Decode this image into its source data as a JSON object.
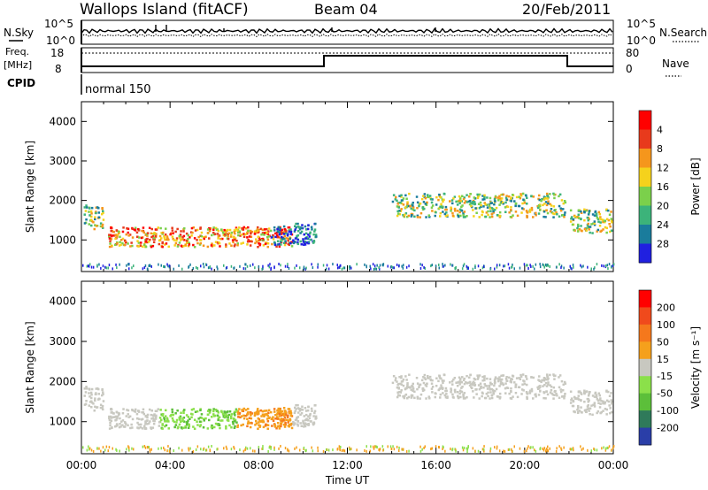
{
  "header": {
    "title": "Wallops Island (fitACF)",
    "beam": "Beam 04",
    "date": "20/Feb/2011"
  },
  "top_panels": {
    "nsky_label": "N.Sky",
    "nsearch_label": "N.Search",
    "noise_ticks": [
      "10^5",
      "10^0"
    ],
    "freq_label": "Freq.",
    "freq_unit": "[MHz]",
    "freq_ticks": [
      "18",
      "8"
    ],
    "nave_label": "Nave",
    "nave_ticks": [
      "80",
      "0"
    ],
    "cpid_label": "CPID",
    "cpid_value": "normal 150"
  },
  "chart_data": [
    {
      "type": "heatmap",
      "name": "power",
      "ylabel": "Slant Range [km]",
      "xlabel": "",
      "ylim": [
        200,
        4500
      ],
      "yticks": [
        "1000",
        "2000",
        "3000",
        "4000"
      ],
      "colorbar_label": "Power [dB]",
      "colorbar_ticks": [
        "4",
        "8",
        "12",
        "16",
        "20",
        "24",
        "28"
      ],
      "colors": [
        "#2020e0",
        "#1a7c9c",
        "#3cb37a",
        "#7bd04b",
        "#f5d21c",
        "#f5961c",
        "#e83a1c",
        "#ff0000"
      ],
      "scatter_regions": [
        {
          "t": [
            0.1,
            1.0
          ],
          "r": [
            1300,
            1900
          ],
          "level": "medium"
        },
        {
          "t": [
            1.2,
            9.5
          ],
          "r": [
            850,
            1350
          ],
          "level": "high"
        },
        {
          "t": [
            8.5,
            10.6
          ],
          "r": [
            900,
            1450
          ],
          "level": "low"
        },
        {
          "t": [
            14.0,
            21.8
          ],
          "r": [
            1600,
            2200
          ],
          "level": "medium"
        },
        {
          "t": [
            22.0,
            24.0
          ],
          "r": [
            1200,
            1800
          ],
          "level": "medium"
        }
      ]
    },
    {
      "type": "heatmap",
      "name": "velocity",
      "ylabel": "Slant Range [km]",
      "xlabel": "Time UT",
      "ylim": [
        200,
        4500
      ],
      "yticks": [
        "1000",
        "2000",
        "3000",
        "4000"
      ],
      "xticks": [
        "00:00",
        "04:00",
        "08:00",
        "12:00",
        "16:00",
        "20:00",
        "00:00"
      ],
      "colorbar_label": "Velocity [m s⁻¹]",
      "colorbar_ticks": [
        "200",
        "100",
        "50",
        "15",
        "-15",
        "-50",
        "-100",
        "-200"
      ],
      "colors": [
        "#2a3ea8",
        "#2f7a5a",
        "#5cbf3a",
        "#8be04a",
        "#c8c8c0",
        "#f5a01c",
        "#f5781c",
        "#f04a1c",
        "#ff0000"
      ]
    }
  ]
}
